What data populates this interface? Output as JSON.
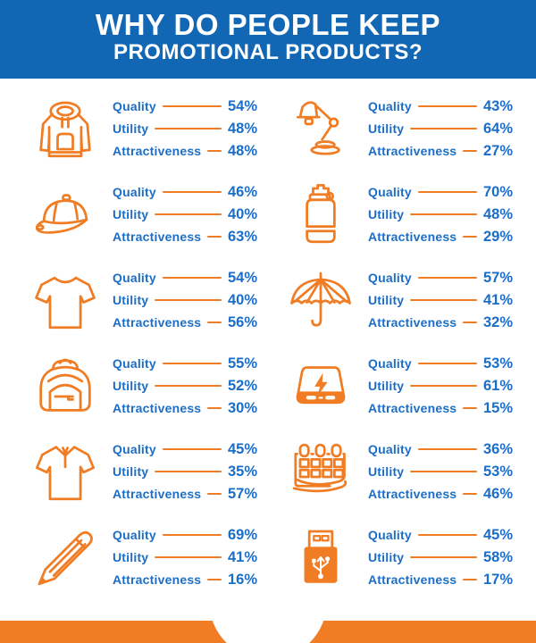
{
  "header": {
    "title_line1": "WHY DO PEOPLE KEEP",
    "title_line2": "PROMOTIONAL PRODUCTS?"
  },
  "labels": {
    "quality": "Quality",
    "utility": "Utility",
    "attractiveness": "Attractiveness"
  },
  "colors": {
    "header_blue": "#1267b4",
    "text_blue": "#1b6ec8",
    "orange": "#f07c24"
  },
  "items": [
    {
      "icon": "hoodie-icon",
      "product": "Hoodie",
      "quality": "54%",
      "utility": "48%",
      "attractiveness": "48%"
    },
    {
      "icon": "desk-lamp-icon",
      "product": "Desk lamp",
      "quality": "43%",
      "utility": "64%",
      "attractiveness": "27%"
    },
    {
      "icon": "cap-icon",
      "product": "Cap",
      "quality": "46%",
      "utility": "40%",
      "attractiveness": "63%"
    },
    {
      "icon": "water-bottle-icon",
      "product": "Water bottle",
      "quality": "70%",
      "utility": "48%",
      "attractiveness": "29%"
    },
    {
      "icon": "tshirt-icon",
      "product": "T-shirt",
      "quality": "54%",
      "utility": "40%",
      "attractiveness": "56%"
    },
    {
      "icon": "umbrella-icon",
      "product": "Umbrella",
      "quality": "57%",
      "utility": "41%",
      "attractiveness": "32%"
    },
    {
      "icon": "backpack-icon",
      "product": "Backpack",
      "quality": "55%",
      "utility": "52%",
      "attractiveness": "30%"
    },
    {
      "icon": "power-bank-icon",
      "product": "Power bank",
      "quality": "53%",
      "utility": "61%",
      "attractiveness": "15%"
    },
    {
      "icon": "polo-shirt-icon",
      "product": "Polo shirt",
      "quality": "45%",
      "utility": "35%",
      "attractiveness": "57%"
    },
    {
      "icon": "calendar-icon",
      "product": "Calendar",
      "quality": "36%",
      "utility": "53%",
      "attractiveness": "46%"
    },
    {
      "icon": "pencil-icon",
      "product": "Pencil",
      "quality": "69%",
      "utility": "41%",
      "attractiveness": "16%"
    },
    {
      "icon": "usb-drive-icon",
      "product": "USB drive",
      "quality": "45%",
      "utility": "58%",
      "attractiveness": "17%"
    }
  ],
  "chart_data": {
    "type": "table",
    "title": "Why Do People Keep Promotional Products?",
    "categories": [
      "Hoodie",
      "Desk lamp",
      "Cap",
      "Water bottle",
      "T-shirt",
      "Umbrella",
      "Backpack",
      "Power bank",
      "Polo shirt",
      "Calendar",
      "Pencil",
      "USB drive"
    ],
    "series": [
      {
        "name": "Quality",
        "values": [
          54,
          43,
          46,
          70,
          54,
          57,
          55,
          53,
          45,
          36,
          69,
          45
        ]
      },
      {
        "name": "Utility",
        "values": [
          48,
          64,
          40,
          48,
          40,
          41,
          52,
          61,
          35,
          53,
          41,
          58
        ]
      },
      {
        "name": "Attractiveness",
        "values": [
          48,
          27,
          63,
          29,
          56,
          32,
          30,
          15,
          57,
          46,
          16,
          17
        ]
      }
    ],
    "unit": "%",
    "layout": "2-column grid, 6 rows, icon left of stats"
  }
}
